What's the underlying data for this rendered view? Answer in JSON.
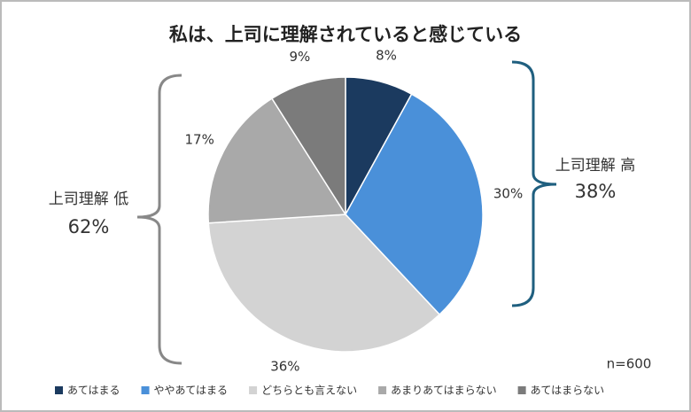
{
  "chart_data": {
    "type": "pie",
    "title": "私は、上司に理解されていると感じている",
    "categories": [
      "あてはまる",
      "ややあてはまる",
      "どちらとも言えない",
      "あまりあてはまらない",
      "あてはまらない"
    ],
    "values": [
      8,
      30,
      36,
      17,
      9
    ],
    "value_labels": [
      "8%",
      "30%",
      "36%",
      "17%",
      "9%"
    ],
    "colors": [
      "#1b3a5f",
      "#4a90d9",
      "#d3d3d3",
      "#a9a9a9",
      "#7b7b7b"
    ],
    "annotations": {
      "high_label": "上司理解 高",
      "high_value": "38%",
      "low_label": "上司理解 低",
      "low_value": "62%",
      "n": "n=600"
    },
    "legend": "bottom"
  }
}
